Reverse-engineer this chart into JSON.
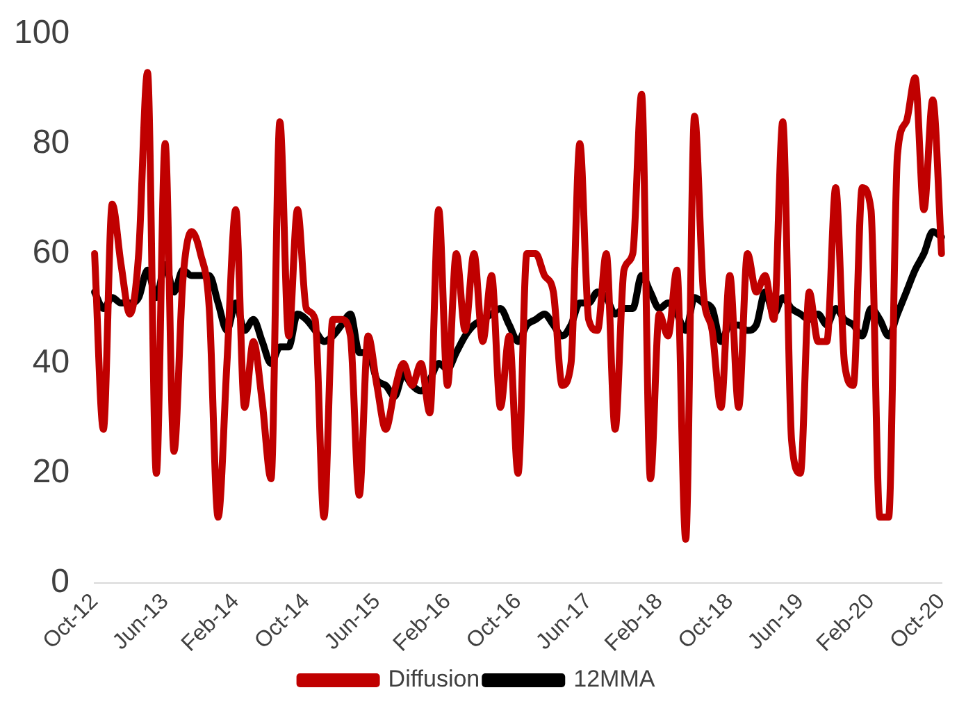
{
  "chart_data": {
    "type": "line",
    "categories": [
      "Oct-12",
      null,
      null,
      null,
      null,
      null,
      null,
      null,
      "Jun-13",
      null,
      null,
      null,
      null,
      null,
      null,
      null,
      "Feb-14",
      null,
      null,
      null,
      null,
      null,
      null,
      null,
      "Oct-14",
      null,
      null,
      null,
      null,
      null,
      null,
      null,
      "Jun-15",
      null,
      null,
      null,
      null,
      null,
      null,
      null,
      "Feb-16",
      null,
      null,
      null,
      null,
      null,
      null,
      null,
      "Oct-16",
      null,
      null,
      null,
      null,
      null,
      null,
      null,
      "Jun-17",
      null,
      null,
      null,
      null,
      null,
      null,
      null,
      "Feb-18",
      null,
      null,
      null,
      null,
      null,
      null,
      null,
      "Oct-18",
      null,
      null,
      null,
      null,
      null,
      null,
      null,
      "Jun-19",
      null,
      null,
      null,
      null,
      null,
      null,
      null,
      "Feb-20",
      null,
      null,
      null,
      null,
      null,
      null,
      null,
      "Oct-20"
    ],
    "series": [
      {
        "name": "Diffusion",
        "color": "#c00000",
        "values": [
          60,
          28,
          69,
          58,
          49,
          60,
          93,
          20,
          80,
          24,
          55,
          64,
          60,
          50,
          12,
          40,
          68,
          32,
          44,
          33,
          19,
          84,
          45,
          68,
          50,
          48,
          12,
          48,
          48,
          45,
          16,
          45,
          36,
          28,
          35,
          40,
          36,
          40,
          31,
          68,
          36,
          60,
          46,
          60,
          44,
          56,
          32,
          45,
          20,
          60,
          60,
          56,
          53,
          36,
          40,
          80,
          48,
          46,
          60,
          28,
          57,
          60,
          89,
          19,
          49,
          45,
          57,
          8,
          85,
          53,
          46,
          32,
          56,
          32,
          60,
          53,
          56,
          48,
          84,
          26,
          20,
          53,
          44,
          44,
          72,
          40,
          36,
          72,
          68,
          12,
          12,
          78,
          84,
          92,
          68,
          88,
          60
        ]
      },
      {
        "name": "12MMA",
        "color": "#000000",
        "values": [
          53,
          50,
          52,
          51,
          51,
          52,
          57,
          52,
          58,
          53,
          57,
          56,
          56,
          56,
          51,
          46,
          51,
          46,
          48,
          44,
          40,
          43,
          43,
          49,
          48,
          46,
          44,
          45,
          47,
          49,
          42,
          42,
          37,
          36,
          34,
          38,
          36,
          35,
          37,
          40,
          39,
          42,
          45,
          47,
          48,
          49,
          50,
          47,
          44,
          47,
          48,
          49,
          47,
          45,
          47,
          51,
          51,
          53,
          52,
          49,
          50,
          50,
          56,
          53,
          50,
          51,
          49,
          46,
          52,
          51,
          50,
          44,
          47,
          47,
          46,
          47,
          53,
          49,
          52,
          50,
          49,
          48,
          49,
          47,
          50,
          48,
          47,
          45,
          50,
          48,
          45,
          49,
          53,
          57,
          60,
          64,
          63
        ]
      }
    ],
    "ylim": [
      0,
      100
    ],
    "yticks": [
      0,
      20,
      40,
      60,
      80,
      100
    ],
    "legend": "bottom"
  }
}
